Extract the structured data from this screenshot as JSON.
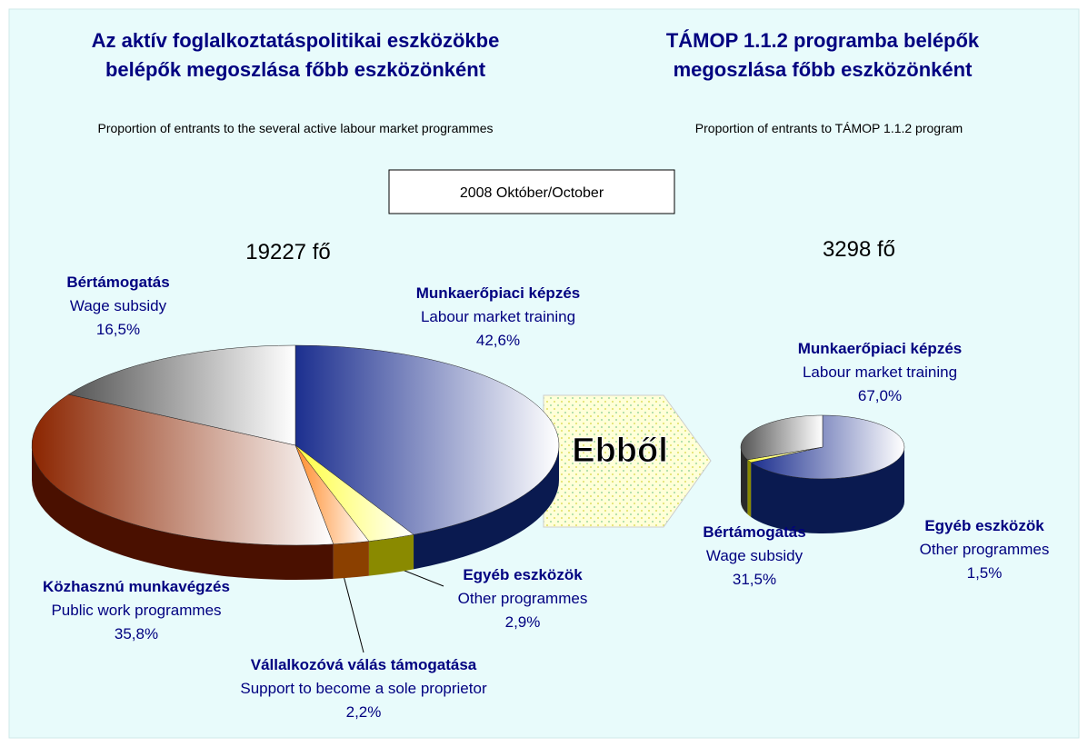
{
  "chart_data": [
    {
      "type": "pie3d",
      "title": [
        "Az aktív foglalkoztatáspolitikai eszközökbe",
        "belépők megoszlása főbb eszközönként"
      ],
      "subtitle": "Proportion of entrants to the several active labour market programmes",
      "total": "19227 fő",
      "categories": [
        "Munkaerőpiaci képzés",
        "Egyéb eszközök",
        "Vállalkozóvá válás támogatása",
        "Közhasznú munkavégzés",
        "Bértámogatás"
      ],
      "categories_en": [
        "Labour market training",
        "Other programmes",
        "Support to become a sole proprietor",
        "Public work programmes",
        "Wage subsidy"
      ],
      "values": [
        42.6,
        2.9,
        2.2,
        35.8,
        16.5
      ],
      "value_labels": [
        "42,6%",
        "2,9%",
        "2,2%",
        "35,8%",
        "16,5%"
      ],
      "colors": [
        "#1c2f8f",
        "#ffff40",
        "#ff8c2a",
        "#8b2500",
        "#555555"
      ],
      "side_colors": [
        "#0a1a50",
        "#8a8a00",
        "#8b4000",
        "#4a1000",
        "#333333"
      ]
    },
    {
      "type": "pie3d",
      "title": [
        "TÁMOP 1.1.2 programba belépők",
        "megoszlása főbb eszközönként"
      ],
      "subtitle": "Proportion of entrants to TÁMOP 1.1.2 program",
      "total": "3298 fő",
      "categories": [
        "Munkaerőpiaci képzés",
        "Egyéb eszközök",
        "Bértámogatás"
      ],
      "categories_en": [
        "Labour market training",
        "Other programmes",
        "Wage subsidy"
      ],
      "values": [
        67.0,
        1.5,
        31.5
      ],
      "value_labels": [
        "67,0%",
        "1,5%",
        "31,5%"
      ],
      "colors": [
        "#1c2f8f",
        "#ffff40",
        "#555555"
      ],
      "side_colors": [
        "#0a1a50",
        "#8a8a00",
        "#2a2a2a"
      ]
    }
  ],
  "date_label": "2008 Október/October",
  "arrow_label": "Ebből"
}
